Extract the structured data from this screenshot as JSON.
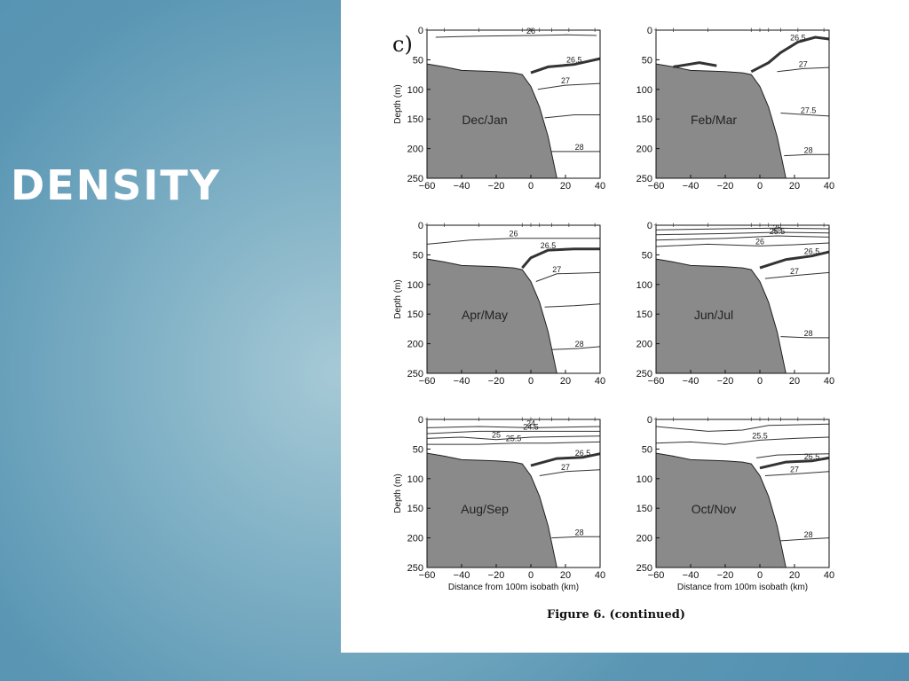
{
  "slide": {
    "title": "DENSITY"
  },
  "figure": {
    "panel_letter": "c)",
    "caption": "Figure 6. (continued)",
    "axes": {
      "xlabel": "Distance from 100m isobath (km)",
      "ylabel": "Depth (m)",
      "xlim": [
        -60,
        40
      ],
      "ylim": [
        250,
        0
      ],
      "xticks": [
        "−60",
        "−40",
        "−20",
        "0",
        "20",
        "40"
      ],
      "yticks": [
        "0",
        "50",
        "100",
        "150",
        "200",
        "250"
      ]
    },
    "colors": {
      "shelf": "#8a8a8a",
      "contour": "#333333",
      "slide_bg": "#5b97b4"
    }
  },
  "chart_data": [
    {
      "type": "contour",
      "season": "Dec/Jan",
      "contours": [
        {
          "level": 26,
          "label": "26",
          "bold": false,
          "points": [
            [
              -55,
              12
            ],
            [
              -30,
              10
            ],
            [
              0,
              9
            ],
            [
              20,
              8
            ],
            [
              38,
              9
            ]
          ]
        },
        {
          "level": 26.5,
          "label": "26.5",
          "bold": true,
          "points": [
            [
              0,
              72
            ],
            [
              10,
              62
            ],
            [
              25,
              58
            ],
            [
              40,
              48
            ]
          ]
        },
        {
          "level": 27,
          "label": "27",
          "bold": false,
          "points": [
            [
              4,
              100
            ],
            [
              20,
              93
            ],
            [
              40,
              90
            ]
          ]
        },
        {
          "level": 27.5,
          "label": "",
          "bold": false,
          "points": [
            [
              8,
              148
            ],
            [
              25,
              143
            ],
            [
              40,
              143
            ]
          ]
        },
        {
          "level": 28,
          "label": "28",
          "bold": false,
          "points": [
            [
              12,
              205
            ],
            [
              28,
              205
            ],
            [
              40,
              205
            ]
          ]
        }
      ]
    },
    {
      "type": "contour",
      "season": "Feb/Mar",
      "contours": [
        {
          "level": 26.5,
          "label": "26.5",
          "bold": true,
          "points": [
            [
              -5,
              70
            ],
            [
              5,
              55
            ],
            [
              12,
              38
            ],
            [
              22,
              20
            ],
            [
              32,
              12
            ],
            [
              40,
              15
            ]
          ]
        },
        {
          "level": 26.5,
          "label": "",
          "bold": true,
          "points": [
            [
              -50,
              62
            ],
            [
              -35,
              55
            ],
            [
              -25,
              60
            ]
          ]
        },
        {
          "level": 27,
          "label": "27",
          "bold": false,
          "points": [
            [
              10,
              70
            ],
            [
              25,
              65
            ],
            [
              40,
              63
            ]
          ]
        },
        {
          "level": 27.5,
          "label": "27.5",
          "bold": false,
          "points": [
            [
              12,
              140
            ],
            [
              28,
              143
            ],
            [
              40,
              145
            ]
          ]
        },
        {
          "level": 28,
          "label": "28",
          "bold": false,
          "points": [
            [
              14,
              212
            ],
            [
              28,
              210
            ],
            [
              40,
              210
            ]
          ]
        }
      ]
    },
    {
      "type": "contour",
      "season": "Apr/May",
      "contours": [
        {
          "level": 26,
          "label": "26",
          "bold": false,
          "points": [
            [
              -60,
              32
            ],
            [
              -35,
              25
            ],
            [
              -10,
              22
            ],
            [
              10,
              22
            ],
            [
              40,
              22
            ]
          ]
        },
        {
          "level": 26.5,
          "label": "26.5",
          "bold": true,
          "points": [
            [
              -5,
              72
            ],
            [
              0,
              55
            ],
            [
              10,
              42
            ],
            [
              25,
              40
            ],
            [
              40,
              40
            ]
          ]
        },
        {
          "level": 27,
          "label": "27",
          "bold": false,
          "points": [
            [
              3,
              95
            ],
            [
              15,
              82
            ],
            [
              40,
              80
            ]
          ]
        },
        {
          "level": 27.5,
          "label": "",
          "bold": false,
          "points": [
            [
              8,
              138
            ],
            [
              25,
              136
            ],
            [
              40,
              133
            ]
          ]
        },
        {
          "level": 28,
          "label": "28",
          "bold": false,
          "points": [
            [
              12,
              210
            ],
            [
              28,
              208
            ],
            [
              40,
              205
            ]
          ]
        }
      ]
    },
    {
      "type": "contour",
      "season": "Jun/Jul",
      "contours": [
        {
          "level": 25,
          "label": "",
          "bold": false,
          "points": [
            [
              -60,
              8
            ],
            [
              -20,
              6
            ],
            [
              10,
              5
            ],
            [
              40,
              6
            ]
          ]
        },
        {
          "level": 25,
          "label": "25",
          "bold": false,
          "points": [
            [
              -60,
              16
            ],
            [
              -20,
              14
            ],
            [
              10,
              12
            ],
            [
              40,
              13
            ]
          ]
        },
        {
          "level": 25.5,
          "label": "25.5",
          "bold": false,
          "points": [
            [
              -60,
              25
            ],
            [
              -20,
              22
            ],
            [
              10,
              18
            ],
            [
              40,
              20
            ]
          ]
        },
        {
          "level": 26,
          "label": "26",
          "bold": false,
          "points": [
            [
              -60,
              36
            ],
            [
              -30,
              32
            ],
            [
              0,
              35
            ],
            [
              20,
              33
            ],
            [
              40,
              30
            ]
          ]
        },
        {
          "level": 26.5,
          "label": "26.5",
          "bold": true,
          "points": [
            [
              0,
              72
            ],
            [
              15,
              58
            ],
            [
              30,
              52
            ],
            [
              40,
              45
            ]
          ]
        },
        {
          "level": 27,
          "label": "27",
          "bold": false,
          "points": [
            [
              3,
              90
            ],
            [
              20,
              85
            ],
            [
              40,
              80
            ]
          ]
        },
        {
          "level": 28,
          "label": "28",
          "bold": false,
          "points": [
            [
              12,
              188
            ],
            [
              28,
              190
            ],
            [
              40,
              190
            ]
          ]
        }
      ]
    },
    {
      "type": "contour",
      "season": "Aug/Sep",
      "contours": [
        {
          "level": 24,
          "label": "24",
          "bold": false,
          "points": [
            [
              -60,
              14
            ],
            [
              -30,
              12
            ],
            [
              0,
              14
            ],
            [
              40,
              12
            ]
          ]
        },
        {
          "level": 24.5,
          "label": "24.5",
          "bold": false,
          "points": [
            [
              -60,
              24
            ],
            [
              -30,
              20
            ],
            [
              0,
              20
            ],
            [
              40,
              20
            ]
          ]
        },
        {
          "level": 25,
          "label": "25",
          "bold": false,
          "points": [
            [
              -60,
              32
            ],
            [
              -40,
              30
            ],
            [
              -20,
              34
            ],
            [
              0,
              30
            ],
            [
              40,
              28
            ]
          ]
        },
        {
          "level": 25.5,
          "label": "25.5",
          "bold": false,
          "points": [
            [
              -60,
              42
            ],
            [
              -30,
              42
            ],
            [
              -10,
              40
            ],
            [
              10,
              40
            ],
            [
              40,
              38
            ]
          ]
        },
        {
          "level": 26.5,
          "label": "26.5",
          "bold": true,
          "points": [
            [
              0,
              78
            ],
            [
              15,
              66
            ],
            [
              30,
              64
            ],
            [
              40,
              58
            ]
          ]
        },
        {
          "level": 27,
          "label": "27",
          "bold": false,
          "points": [
            [
              5,
              95
            ],
            [
              20,
              88
            ],
            [
              40,
              85
            ]
          ]
        },
        {
          "level": 28,
          "label": "28",
          "bold": false,
          "points": [
            [
              12,
              200
            ],
            [
              28,
              198
            ],
            [
              40,
              198
            ]
          ]
        }
      ]
    },
    {
      "type": "contour",
      "season": "Oct/Nov",
      "contours": [
        {
          "level": 25,
          "label": "",
          "bold": false,
          "points": [
            [
              -60,
              12
            ],
            [
              -30,
              20
            ],
            [
              -10,
              18
            ],
            [
              5,
              10
            ],
            [
              40,
              8
            ]
          ]
        },
        {
          "level": 25.5,
          "label": "25.5",
          "bold": false,
          "points": [
            [
              -60,
              40
            ],
            [
              -40,
              38
            ],
            [
              -20,
              42
            ],
            [
              0,
              35
            ],
            [
              20,
              32
            ],
            [
              40,
              30
            ]
          ]
        },
        {
          "level": 26,
          "label": "",
          "bold": false,
          "points": [
            [
              -2,
              65
            ],
            [
              10,
              60
            ],
            [
              40,
              58
            ]
          ]
        },
        {
          "level": 26.5,
          "label": "26.5",
          "bold": true,
          "points": [
            [
              0,
              82
            ],
            [
              15,
              72
            ],
            [
              30,
              70
            ],
            [
              40,
              65
            ]
          ]
        },
        {
          "level": 27,
          "label": "27",
          "bold": false,
          "points": [
            [
              3,
              95
            ],
            [
              20,
              92
            ],
            [
              40,
              88
            ]
          ]
        },
        {
          "level": 28,
          "label": "28",
          "bold": false,
          "points": [
            [
              12,
              205
            ],
            [
              28,
              202
            ],
            [
              40,
              200
            ]
          ]
        }
      ]
    }
  ]
}
